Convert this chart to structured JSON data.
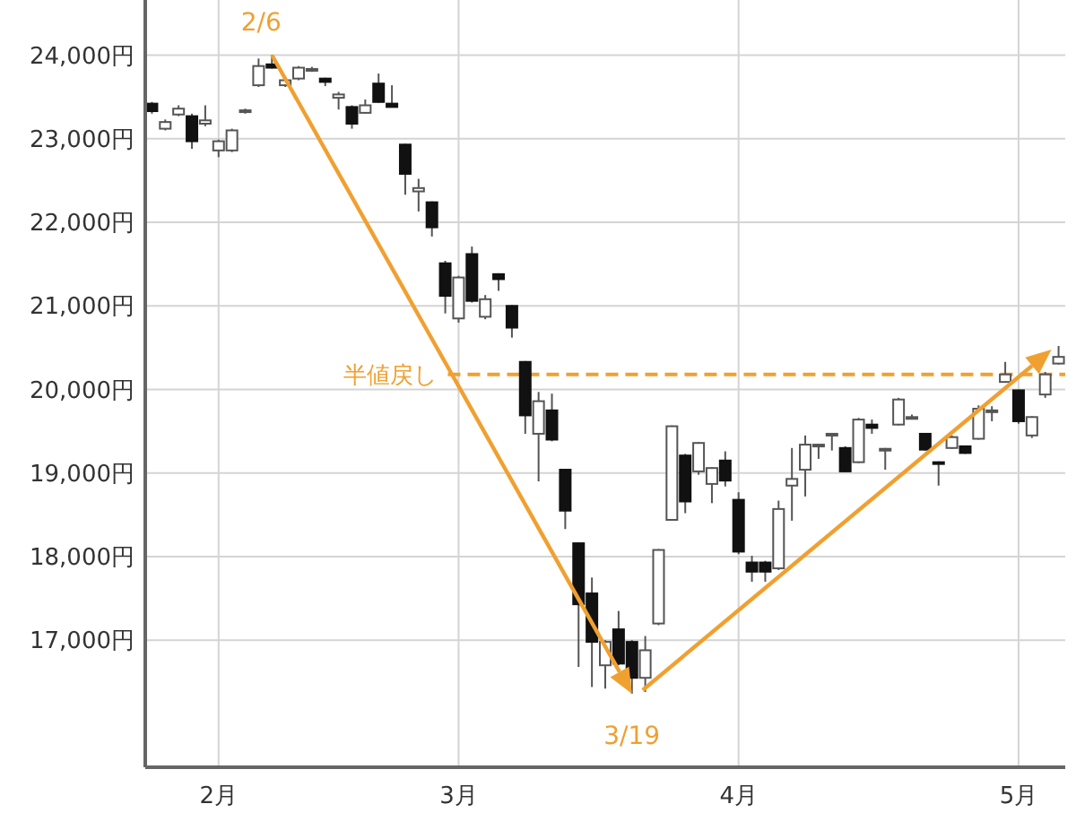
{
  "chart_data": {
    "type": "candlestick",
    "categories": [
      null,
      null,
      null,
      null,
      null,
      "2月",
      null,
      null,
      null,
      null,
      null,
      null,
      null,
      null,
      null,
      null,
      null,
      null,
      null,
      null,
      null,
      null,
      null,
      "3月",
      null,
      null,
      null,
      null,
      null,
      null,
      null,
      null,
      null,
      null,
      null,
      null,
      null,
      null,
      null,
      null,
      null,
      null,
      null,
      null,
      "4月",
      null,
      null,
      null,
      null,
      null,
      null,
      null,
      null,
      null,
      null,
      null,
      null,
      null,
      null,
      null,
      null,
      null,
      null,
      null,
      null,
      "5月",
      null,
      null,
      null
    ],
    "ohlc": [
      [
        23420,
        23440,
        23300,
        23330
      ],
      [
        23120,
        23230,
        23100,
        23200
      ],
      [
        23290,
        23400,
        23270,
        23360
      ],
      [
        23270,
        23300,
        22880,
        22970
      ],
      [
        23180,
        23400,
        23150,
        23220
      ],
      [
        22860,
        22990,
        22780,
        22970
      ],
      [
        22860,
        23120,
        22840,
        23100
      ],
      [
        23320,
        23360,
        23300,
        23340
      ],
      [
        23640,
        23960,
        23620,
        23870
      ],
      [
        23890,
        24000,
        23840,
        23850
      ],
      [
        23640,
        23730,
        23620,
        23700
      ],
      [
        23720,
        23870,
        23700,
        23850
      ],
      [
        23830,
        23860,
        23800,
        23835
      ],
      [
        23720,
        23730,
        23630,
        23680
      ],
      [
        23490,
        23560,
        23350,
        23530
      ],
      [
        23380,
        23400,
        23120,
        23180
      ],
      [
        23310,
        23470,
        23300,
        23400
      ],
      [
        23660,
        23780,
        23430,
        23440
      ],
      [
        23420,
        23640,
        23380,
        23380
      ],
      [
        22930,
        22940,
        22330,
        22580
      ],
      [
        22370,
        22520,
        22130,
        22410
      ],
      [
        22240,
        22250,
        21830,
        21940
      ],
      [
        21510,
        21540,
        20910,
        21120
      ],
      [
        20850,
        21360,
        20800,
        21340
      ],
      [
        21620,
        21710,
        21040,
        21060
      ],
      [
        20870,
        21130,
        20840,
        21080
      ],
      [
        21380,
        21390,
        21180,
        21320
      ],
      [
        21000,
        21010,
        20620,
        20740
      ],
      [
        20330,
        20340,
        19470,
        19690
      ],
      [
        19470,
        19970,
        18900,
        19860
      ],
      [
        19750,
        19950,
        19380,
        19400
      ],
      [
        19040,
        19050,
        18330,
        18550
      ],
      [
        18160,
        18170,
        16680,
        17430
      ],
      [
        17560,
        17750,
        16440,
        16980
      ],
      [
        16700,
        17000,
        16420,
        16980
      ],
      [
        17130,
        17350,
        16700,
        16720
      ],
      [
        16980,
        17000,
        16360,
        16550
      ],
      [
        16550,
        17050,
        16380,
        16880
      ],
      [
        17200,
        18090,
        17180,
        18080
      ],
      [
        18440,
        19570,
        18430,
        19560
      ],
      [
        19210,
        19230,
        18520,
        18660
      ],
      [
        19020,
        19370,
        18980,
        19360
      ],
      [
        18870,
        19070,
        18640,
        19060
      ],
      [
        19150,
        19260,
        18840,
        18910
      ],
      [
        18680,
        18770,
        18030,
        18060
      ],
      [
        17930,
        18010,
        17700,
        17820
      ],
      [
        17930,
        17950,
        17700,
        17820
      ],
      [
        17860,
        18670,
        17840,
        18570
      ],
      [
        18850,
        19300,
        18430,
        18930
      ],
      [
        19040,
        19450,
        18720,
        19340
      ],
      [
        19330,
        19350,
        19170,
        19340
      ],
      [
        19460,
        19480,
        19270,
        19470
      ],
      [
        19300,
        19320,
        19010,
        19020
      ],
      [
        19130,
        19660,
        19120,
        19640
      ],
      [
        19580,
        19640,
        19470,
        19540
      ],
      [
        19280,
        19300,
        19040,
        19290
      ],
      [
        19580,
        19900,
        19570,
        19880
      ],
      [
        19660,
        19700,
        19640,
        19670
      ],
      [
        19470,
        19480,
        19270,
        19280
      ],
      [
        19130,
        19140,
        18850,
        19120
      ],
      [
        19300,
        19450,
        19290,
        19430
      ],
      [
        19320,
        19330,
        19230,
        19240
      ],
      [
        19410,
        19810,
        19400,
        19770
      ],
      [
        19740,
        19800,
        19620,
        19750
      ],
      [
        20090,
        20330,
        20080,
        20180
      ],
      [
        19990,
        20000,
        19590,
        19620
      ],
      [
        19450,
        19680,
        19420,
        19670
      ],
      [
        19940,
        20210,
        19900,
        20180
      ],
      [
        20310,
        20520,
        20300,
        20390
      ]
    ],
    "ylim": [
      15480,
      24660
    ],
    "yticks": [
      {
        "value": 17000,
        "label": "17,000円"
      },
      {
        "value": 18000,
        "label": "18,000円"
      },
      {
        "value": 19000,
        "label": "19,000円"
      },
      {
        "value": 20000,
        "label": "20,000円"
      },
      {
        "value": 21000,
        "label": "21,000円"
      },
      {
        "value": 22000,
        "label": "22,000円"
      },
      {
        "value": 23000,
        "label": "23,000円"
      },
      {
        "value": 24000,
        "label": "24,000円"
      }
    ],
    "grid": true,
    "ref_lines": [
      {
        "axis": "y",
        "value": 20180,
        "label": "半値戻し",
        "color": "#f0a030",
        "line_style": "dashed"
      }
    ],
    "annotations": [
      "2/6",
      "3/19"
    ]
  }
}
